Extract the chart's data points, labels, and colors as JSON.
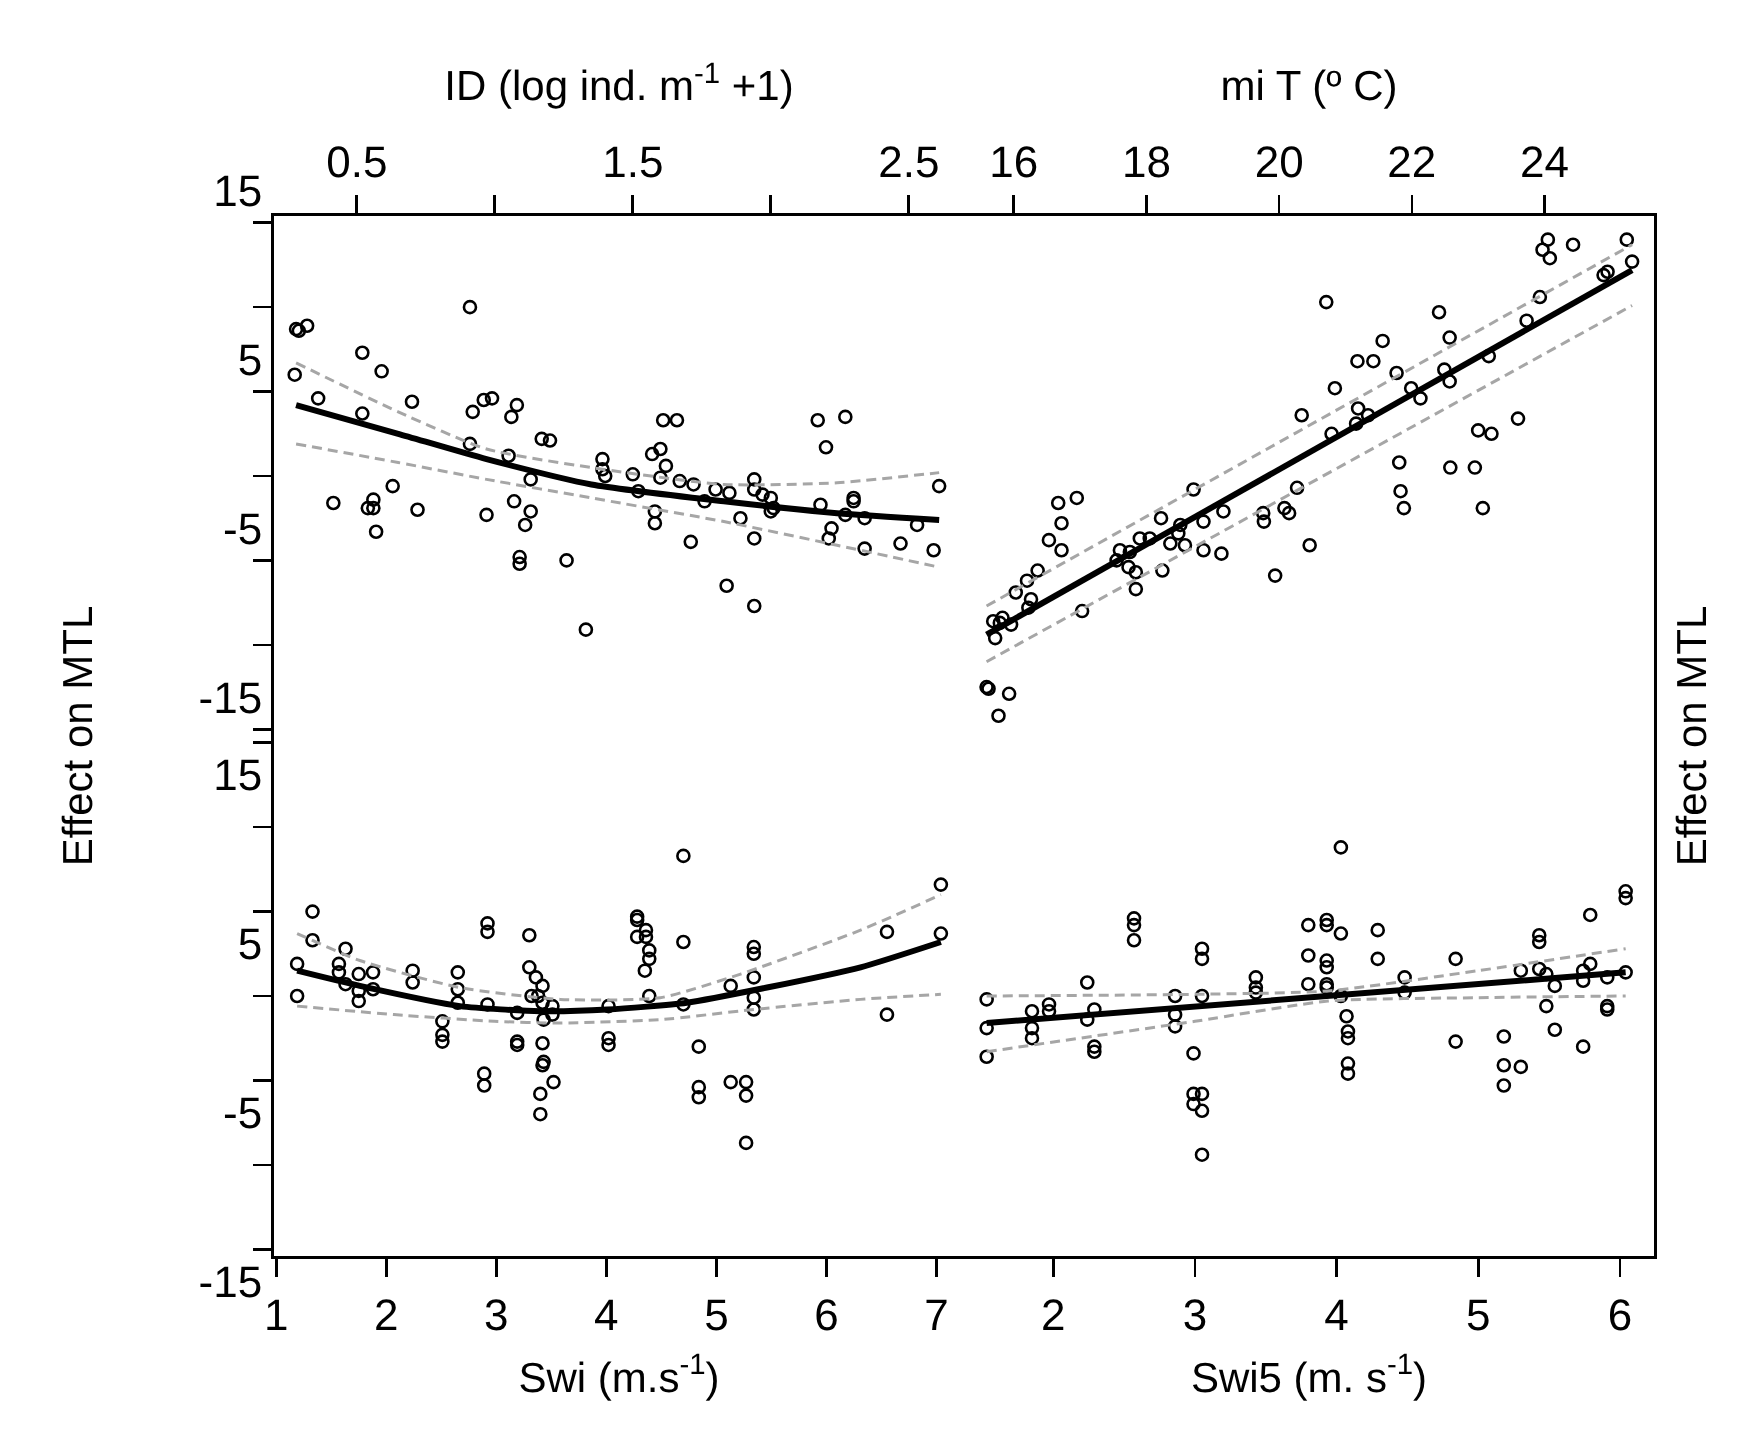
{
  "chart_data": [
    {
      "type": "scatter",
      "xlabel": "ID (log ind. m$^{-1}$ +1)",
      "ylabel": "Effect on MTL",
      "xlim": [
        0.2,
        2.7
      ],
      "xticks": [
        0.5,
        {
          "value": 1.0,
          "label": null
        },
        1.5,
        {
          "value": 2.0,
          "label": null
        },
        2.5
      ],
      "ylim": [
        -15.4,
        15.4
      ],
      "yticks": [
        -15,
        {
          "value": -10,
          "label": null
        },
        -5,
        {
          "value": 0,
          "label": null
        },
        5,
        {
          "value": 10,
          "label": null
        },
        15
      ],
      "grid": false,
      "series": [
        {
          "type": "scatter",
          "color": "#000000",
          "marker": "circle",
          "x": [
            0.275,
            0.28,
            0.29,
            0.32,
            0.36,
            0.415,
            0.52,
            0.52,
            0.54,
            0.56,
            0.56,
            0.57,
            0.59,
            0.63,
            0.7,
            0.72,
            0.91,
            0.91,
            0.92,
            0.96,
            0.99,
            0.97,
            1.05,
            1.06,
            1.08,
            1.07,
            1.09,
            1.09,
            1.11,
            1.13,
            1.13,
            1.17,
            1.2,
            1.26,
            1.33,
            1.39,
            1.39,
            1.4,
            1.5,
            1.52,
            1.57,
            1.58,
            1.58,
            1.6,
            1.61,
            1.66,
            1.6,
            1.62,
            1.67,
            1.71,
            1.72,
            1.76,
            1.8,
            1.84,
            1.85,
            1.89,
            1.94,
            1.94,
            1.94,
            1.97,
            1.94,
            2.0,
            2.01,
            2.0,
            2.17,
            2.27,
            2.18,
            2.2,
            2.21,
            2.22,
            2.27,
            2.3,
            2.3,
            2.34,
            2.34,
            2.47,
            2.53,
            2.59,
            2.61
          ],
          "values": [
            6.0,
            8.7,
            8.6,
            8.9,
            4.6,
            -1.6,
            7.3,
            3.7,
            -1.9,
            -1.9,
            -1.4,
            -3.3,
            6.2,
            -0.6,
            4.4,
            -2.0,
            10.0,
            1.9,
            3.8,
            4.5,
            4.6,
            -2.3,
            1.2,
            3.5,
            4.2,
            -1.5,
            -4.8,
            -5.2,
            -2.9,
            -0.2,
            -2.1,
            2.2,
            2.1,
            -5.0,
            -9.1,
            1.0,
            0.4,
            0.0,
            0.1,
            -0.9,
            1.3,
            -2.1,
            -2.8,
            1.6,
            3.3,
            3.3,
            -0.1,
            0.6,
            -0.3,
            -3.9,
            -0.5,
            -1.5,
            -0.8,
            -6.5,
            -1.0,
            -2.5,
            -7.7,
            -0.2,
            -0.8,
            -1.1,
            -3.7,
            -1.3,
            -1.9,
            -2.1,
            3.3,
            3.5,
            -1.7,
            1.7,
            -3.7,
            -3.1,
            -2.3,
            -1.3,
            -1.5,
            -2.5,
            -4.3,
            -4.0,
            -2.9,
            -4.4,
            -0.6
          ]
        },
        {
          "type": "line",
          "color": "#000000",
          "line_style": "solid",
          "marker": "none",
          "x": [
            0.28,
            0.65,
            0.97,
            1.35,
            1.83,
            2.24,
            2.61
          ],
          "values": [
            4.2,
            2.5,
            1.0,
            -0.5,
            -1.5,
            -2.2,
            -2.6
          ]
        },
        {
          "type": "line",
          "color": "#a6a6a6",
          "line_style": "dashed",
          "marker": "none",
          "x": [
            0.28,
            0.65,
            0.97,
            1.35,
            1.83,
            2.24,
            2.61
          ],
          "values": [
            6.7,
            3.8,
            1.6,
            0.5,
            -0.5,
            -0.4,
            0.2
          ]
        },
        {
          "type": "line",
          "color": "#a6a6a6",
          "line_style": "dashed",
          "marker": "none",
          "x": [
            0.28,
            0.65,
            0.97,
            1.35,
            1.83,
            2.24,
            2.61
          ],
          "values": [
            1.9,
            0.8,
            -0.2,
            -1.3,
            -2.7,
            -4.1,
            -5.4
          ]
        }
      ]
    },
    {
      "type": "scatter",
      "xlabel": "mi T (º C)",
      "ylabel": "Effect on MTL",
      "xlim": [
        15.25,
        25.65
      ],
      "xticks": [
        16,
        18,
        20,
        22,
        24
      ],
      "ylim": [
        -15.4,
        15.4
      ],
      "tick_labels": "x",
      "grid": false,
      "series": [
        {
          "type": "scatter",
          "color": "#000000",
          "marker": "circle",
          "x": [
            15.59,
            15.62,
            15.77,
            15.93,
            15.69,
            15.72,
            15.83,
            15.79,
            15.96,
            16.03,
            16.2,
            16.26,
            16.22,
            16.36,
            16.53,
            16.67,
            16.72,
            16.72,
            16.95,
            17.03,
            17.55,
            17.6,
            17.75,
            17.73,
            17.84,
            17.84,
            17.9,
            18.05,
            18.22,
            18.24,
            18.36,
            18.51,
            18.48,
            18.58,
            18.71,
            18.86,
            18.86,
            19.13,
            19.16,
            19.76,
            19.77,
            19.94,
            20.08,
            20.15,
            20.27,
            20.34,
            20.46,
            20.71,
            20.79,
            20.84,
            21.16,
            21.19,
            21.34,
            21.18,
            21.42,
            21.56,
            21.77,
            21.81,
            21.83,
            21.88,
            21.99,
            22.13,
            22.41,
            22.49,
            22.57,
            22.58,
            22.57,
            22.95,
            23.07,
            23.0,
            23.2,
            23.16,
            23.6,
            23.73,
            23.93,
            23.97,
            24.05,
            24.08,
            24.43,
            24.89,
            24.95,
            25.24,
            25.32
          ],
          "values": [
            -12.5,
            -12.6,
            -14.2,
            -12.9,
            -8.6,
            -9.6,
            -8.4,
            -8.7,
            -8.8,
            -6.9,
            -6.2,
            -7.3,
            -7.8,
            -5.6,
            -3.8,
            -1.6,
            -2.8,
            -4.4,
            -1.3,
            -8.0,
            -5.0,
            -4.4,
            -4.5,
            -5.4,
            -5.7,
            -6.7,
            -3.7,
            -3.7,
            -2.5,
            -5.6,
            -4.0,
            -2.9,
            -3.4,
            -4.1,
            -0.8,
            -2.7,
            -4.4,
            -4.6,
            -2.1,
            -2.2,
            -2.7,
            -5.9,
            -1.9,
            -2.2,
            -0.7,
            3.6,
            -4.1,
            10.3,
            2.5,
            5.2,
            3.1,
            4.0,
            3.6,
            6.8,
            6.8,
            8.0,
            6.1,
            0.8,
            -0.9,
            -1.9,
            5.2,
            4.6,
            9.7,
            6.3,
            8.2,
            0.5,
            5.6,
            0.5,
            -1.9,
            2.7,
            2.5,
            7.1,
            3.4,
            9.2,
            10.6,
            13.4,
            14.0,
            12.9,
            13.7,
            11.9,
            12.1,
            14.0,
            12.7
          ]
        },
        {
          "type": "line",
          "color": "#000000",
          "line_style": "solid",
          "marker": "none",
          "x": [
            15.59,
            25.32
          ],
          "values": [
            -9.4,
            12.2
          ]
        },
        {
          "type": "line",
          "color": "#a6a6a6",
          "line_style": "dashed",
          "marker": "none",
          "x": [
            15.59,
            25.32
          ],
          "values": [
            -7.7,
            13.7
          ]
        },
        {
          "type": "line",
          "color": "#a6a6a6",
          "line_style": "dashed",
          "marker": "none",
          "x": [
            15.59,
            25.32
          ],
          "values": [
            -11.0,
            10.1
          ]
        }
      ]
    },
    {
      "type": "scatter",
      "xlabel": "Swi (m.s$^{-1}$)",
      "xlim": [
        0.98,
        7.25
      ],
      "xticks": [
        1,
        2,
        3,
        4,
        5,
        6,
        7
      ],
      "ylim": [
        -15.4,
        15.4
      ],
      "yticks": [
        -15,
        {
          "value": -10,
          "label": null
        },
        -5,
        {
          "value": 0,
          "label": null
        },
        5,
        {
          "value": 10,
          "label": null
        },
        15
      ],
      "grid": false,
      "series": [
        {
          "type": "scatter",
          "color": "#000000",
          "marker": "circle",
          "x": [
            1.19,
            1.19,
            1.33,
            1.33,
            1.57,
            1.57,
            1.63,
            1.63,
            1.75,
            1.75,
            1.75,
            1.88,
            1.88,
            2.24,
            2.24,
            2.51,
            2.51,
            2.51,
            2.65,
            2.65,
            2.65,
            2.89,
            2.89,
            2.92,
            2.92,
            2.92,
            3.19,
            3.19,
            3.19,
            3.3,
            3.3,
            3.36,
            3.38,
            3.32,
            3.42,
            3.42,
            3.43,
            3.42,
            3.42,
            3.43,
            3.4,
            3.4,
            3.51,
            3.51,
            3.52,
            4.02,
            4.02,
            4.02,
            4.28,
            4.28,
            4.28,
            4.36,
            4.36,
            4.39,
            4.39,
            4.35,
            4.39,
            4.7,
            4.7,
            4.7,
            4.84,
            4.84,
            4.84,
            5.13,
            5.13,
            5.27,
            5.27,
            5.27,
            5.34,
            5.34,
            5.34,
            5.34,
            5.34,
            6.55,
            6.55,
            7.04,
            7.04
          ],
          "values": [
            1.9,
            0.0,
            5.0,
            3.3,
            1.9,
            1.4,
            2.8,
            0.7,
            1.3,
            0.3,
            -0.3,
            1.4,
            0.4,
            1.5,
            0.8,
            -1.5,
            -2.3,
            -2.7,
            1.4,
            0.4,
            -0.4,
            -4.6,
            -5.3,
            4.3,
            3.8,
            -0.5,
            -1.0,
            -2.7,
            -2.9,
            3.6,
            1.7,
            1.1,
            0.0,
            0.0,
            0.6,
            -0.4,
            -1.4,
            -2.8,
            -4.1,
            -3.9,
            -5.8,
            -7.0,
            -0.6,
            -1.1,
            -5.1,
            -0.6,
            -2.5,
            -2.9,
            4.7,
            4.5,
            3.5,
            3.9,
            3.5,
            2.7,
            2.2,
            1.5,
            0.0,
            8.3,
            3.2,
            -0.5,
            -3.0,
            -5.4,
            -6.0,
            0.6,
            -5.1,
            -5.1,
            -5.9,
            -8.7,
            2.9,
            2.5,
            1.1,
            -0.1,
            -0.8,
            3.8,
            -1.1,
            6.6,
            3.7
          ]
        },
        {
          "type": "line",
          "color": "#000000",
          "line_style": "solid",
          "marker": "none",
          "x": [
            1.19,
            1.76,
            2.67,
            3.4,
            4.01,
            4.73,
            5.46,
            6.31,
            7.04
          ],
          "values": [
            1.5,
            0.6,
            -0.6,
            -0.9,
            -0.8,
            -0.4,
            0.5,
            1.7,
            3.2
          ]
        },
        {
          "type": "line",
          "color": "#a6a6a6",
          "line_style": "dashed",
          "marker": "none",
          "x": [
            1.19,
            1.76,
            2.67,
            3.58,
            4.49,
            5.22,
            6.31,
            7.04
          ],
          "values": [
            3.7,
            2.1,
            0.5,
            -0.2,
            -0.1,
            1.3,
            3.9,
            6.0
          ]
        },
        {
          "type": "line",
          "color": "#a6a6a6",
          "line_style": "dashed",
          "marker": "none",
          "x": [
            1.19,
            2.07,
            2.98,
            3.58,
            4.49,
            5.34,
            6.31,
            7.04
          ],
          "values": [
            -0.6,
            -1.1,
            -1.5,
            -1.6,
            -1.4,
            -0.8,
            -0.2,
            0.1
          ]
        }
      ]
    },
    {
      "type": "scatter",
      "xlabel": "Swi5 (m. s$^{-1}$)",
      "xlim": [
        1.37,
        6.24
      ],
      "xticks": [
        2,
        3,
        4,
        5,
        6
      ],
      "ylim": [
        -15.4,
        15.4
      ],
      "tick_labels": "x",
      "grid": false,
      "series": [
        {
          "type": "scatter",
          "color": "#000000",
          "marker": "circle",
          "x": [
            1.53,
            1.53,
            1.53,
            1.85,
            1.85,
            1.85,
            1.97,
            1.97,
            2.24,
            2.24,
            2.29,
            2.29,
            2.29,
            2.57,
            2.57,
            2.57,
            2.86,
            2.86,
            2.86,
            2.99,
            2.99,
            2.99,
            3.05,
            3.05,
            3.05,
            3.05,
            3.05,
            3.05,
            3.43,
            3.43,
            3.43,
            3.8,
            3.8,
            3.8,
            3.93,
            3.93,
            3.93,
            3.93,
            3.93,
            3.93,
            4.03,
            4.03,
            4.03,
            4.07,
            4.08,
            4.08,
            4.08,
            4.08,
            4.29,
            4.29,
            4.48,
            4.48,
            4.84,
            4.84,
            5.18,
            5.18,
            5.18,
            5.3,
            5.3,
            5.43,
            5.43,
            5.43,
            5.48,
            5.48,
            5.54,
            5.54,
            5.74,
            5.74,
            5.74,
            5.79,
            5.79,
            5.91,
            5.91,
            5.91,
            6.04,
            6.04,
            6.04
          ],
          "values": [
            -0.2,
            -1.9,
            -3.6,
            -0.9,
            -1.9,
            -2.5,
            -0.5,
            -0.9,
            0.8,
            -1.4,
            -0.8,
            -3.0,
            -3.3,
            4.6,
            4.2,
            3.3,
            0.0,
            -1.1,
            -1.8,
            -3.4,
            -5.8,
            -6.4,
            -5.8,
            -6.8,
            -9.4,
            2.8,
            2.2,
            0.0,
            1.1,
            0.5,
            0.2,
            4.2,
            2.4,
            0.7,
            4.5,
            4.2,
            2.1,
            1.7,
            0.7,
            0.5,
            8.8,
            3.7,
            0.0,
            -1.2,
            -2.1,
            -2.5,
            -4.0,
            -4.6,
            3.9,
            2.2,
            1.1,
            0.2,
            2.2,
            -2.7,
            -2.4,
            -4.1,
            -5.3,
            1.5,
            -4.2,
            3.6,
            3.2,
            1.6,
            1.3,
            -0.6,
            0.6,
            -2.0,
            1.5,
            0.9,
            -3.0,
            4.8,
            1.9,
            1.1,
            -0.6,
            -0.8,
            6.2,
            5.8,
            1.4
          ]
        },
        {
          "type": "line",
          "color": "#000000",
          "line_style": "solid",
          "marker": "none",
          "x": [
            1.53,
            6.04
          ],
          "values": [
            -1.6,
            1.4
          ]
        },
        {
          "type": "line",
          "color": "#a6a6a6",
          "line_style": "dashed",
          "marker": "none",
          "x": [
            1.53,
            3.0,
            3.94,
            5.0,
            6.04
          ],
          "values": [
            0.0,
            0.1,
            0.3,
            1.5,
            2.8
          ]
        },
        {
          "type": "line",
          "color": "#a6a6a6",
          "line_style": "dashed",
          "marker": "none",
          "x": [
            1.53,
            3.0,
            3.94,
            5.0,
            6.04
          ],
          "values": [
            -3.3,
            -1.5,
            -0.3,
            -0.1,
            0.0
          ]
        }
      ]
    }
  ]
}
